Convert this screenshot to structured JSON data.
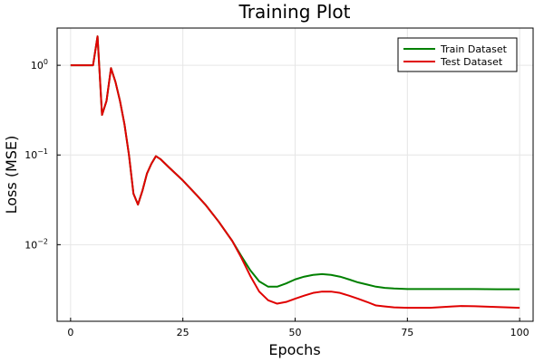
{
  "chart_data": {
    "type": "line",
    "title": "Training Plot",
    "xlabel": "Epochs",
    "ylabel": "Loss (MSE)",
    "xlim": [
      -3,
      103
    ],
    "ylim": [
      0.0014,
      2.6
    ],
    "yscale": "log",
    "grid": true,
    "legend_position": "top-right",
    "x_ticks": [
      0,
      25,
      50,
      75,
      100
    ],
    "x_tick_labels": [
      "0",
      "25",
      "50",
      "75",
      "100"
    ],
    "y_ticks": [
      0.01,
      0.1,
      1
    ],
    "y_tick_labels": [
      {
        "base": "10",
        "exp": "−2"
      },
      {
        "base": "10",
        "exp": "−1"
      },
      {
        "base": "10",
        "exp": "0"
      }
    ],
    "series": [
      {
        "name": "Train Dataset",
        "color": "#008000",
        "x": [
          0,
          1,
          2,
          3,
          4,
          5,
          6,
          7,
          8,
          9,
          10,
          11,
          12,
          13,
          14,
          15,
          16,
          17,
          18,
          19,
          20,
          22,
          25,
          28,
          30,
          33,
          36,
          38,
          40,
          42,
          44,
          46,
          48,
          50,
          52,
          54,
          56,
          58,
          60,
          62,
          64,
          66,
          68,
          70,
          72,
          75,
          80,
          85,
          87,
          90,
          95,
          100
        ],
        "y": [
          1.0,
          1.0,
          1.0,
          1.0,
          1.0,
          1.0,
          2.1,
          0.28,
          0.4,
          0.93,
          0.65,
          0.4,
          0.22,
          0.1,
          0.037,
          0.028,
          0.04,
          0.062,
          0.08,
          0.097,
          0.09,
          0.072,
          0.052,
          0.036,
          0.028,
          0.018,
          0.011,
          0.0075,
          0.0052,
          0.0039,
          0.0034,
          0.0034,
          0.0037,
          0.0041,
          0.0044,
          0.0046,
          0.0047,
          0.0046,
          0.0044,
          0.0041,
          0.0038,
          0.0036,
          0.0034,
          0.0033,
          0.00325,
          0.0032,
          0.0032,
          0.0032,
          0.0032,
          0.0032,
          0.00318,
          0.00318
        ]
      },
      {
        "name": "Test Dataset",
        "color": "#e00000",
        "x": [
          0,
          1,
          2,
          3,
          4,
          5,
          6,
          7,
          8,
          9,
          10,
          11,
          12,
          13,
          14,
          15,
          16,
          17,
          18,
          19,
          20,
          22,
          25,
          28,
          30,
          33,
          36,
          38,
          40,
          42,
          44,
          46,
          48,
          50,
          52,
          54,
          56,
          58,
          60,
          62,
          64,
          66,
          68,
          70,
          72,
          75,
          80,
          85,
          87,
          90,
          95,
          100
        ],
        "y": [
          1.0,
          1.0,
          1.0,
          1.0,
          1.0,
          1.0,
          2.1,
          0.28,
          0.4,
          0.93,
          0.65,
          0.4,
          0.22,
          0.1,
          0.037,
          0.028,
          0.04,
          0.062,
          0.08,
          0.097,
          0.09,
          0.072,
          0.052,
          0.036,
          0.028,
          0.018,
          0.011,
          0.0072,
          0.0045,
          0.003,
          0.0024,
          0.0022,
          0.0023,
          0.0025,
          0.0027,
          0.0029,
          0.003,
          0.003,
          0.0029,
          0.0027,
          0.0025,
          0.0023,
          0.0021,
          0.00205,
          0.002,
          0.00198,
          0.00198,
          0.00205,
          0.00207,
          0.00206,
          0.00202,
          0.00198
        ]
      }
    ]
  }
}
